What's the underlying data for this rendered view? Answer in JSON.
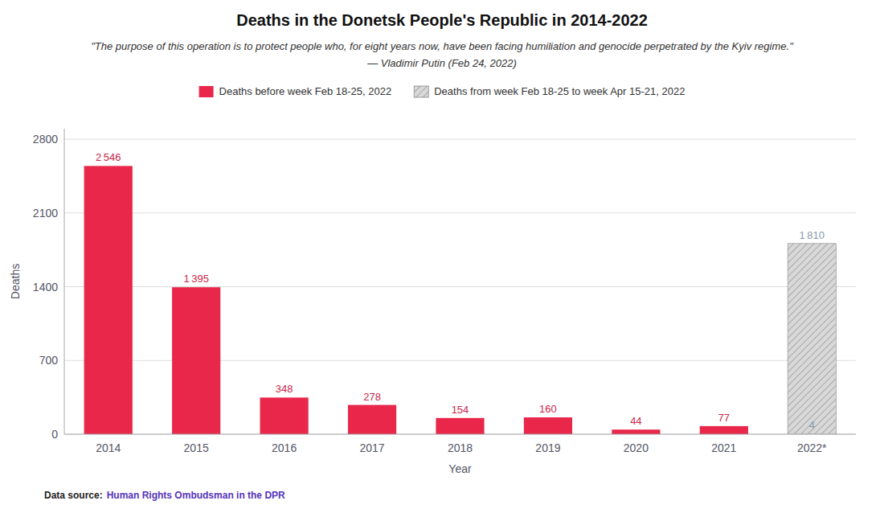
{
  "chart_data": {
    "type": "bar",
    "title": "Deaths in the Donetsk People's Republic in 2014-2022",
    "subtitle": [
      "\"The purpose of this operation is to protect people who, for eight years now, have been facing humiliation and genocide perpetrated by the Kyiv regime.\"",
      "— Vladimir Putin (Feb 24, 2022)"
    ],
    "x_label": "Year",
    "y_label": "Deaths",
    "categories": [
      "2014",
      "2015",
      "2016",
      "2017",
      "2018",
      "2019",
      "2020",
      "2021",
      "2022*"
    ],
    "series": [
      {
        "name": "Deaths before week Feb 18-25, 2022",
        "color": "#e8274b",
        "values": [
          2546,
          1395,
          348,
          278,
          154,
          160,
          44,
          77,
          4
        ],
        "value_labels": [
          "2 546",
          "1 395",
          "348",
          "278",
          "154",
          "160",
          "44",
          "77",
          "4"
        ]
      },
      {
        "name": "Deaths from week Feb 18-25 to week Apr 15-21, 2022",
        "color": "#d8d8d8",
        "values": [
          0,
          0,
          0,
          0,
          0,
          0,
          0,
          0,
          1810
        ],
        "value_labels": [
          null,
          null,
          null,
          null,
          null,
          null,
          null,
          null,
          "1 810"
        ]
      }
    ],
    "ylim": [
      0,
      2900
    ],
    "yticks": [
      0,
      700,
      1400,
      2100,
      2800
    ],
    "grid": true,
    "legend": "top",
    "data_labels": true,
    "annotations": [
      "Data source:",
      "Human Rights Ombudsman in the DPR"
    ]
  }
}
